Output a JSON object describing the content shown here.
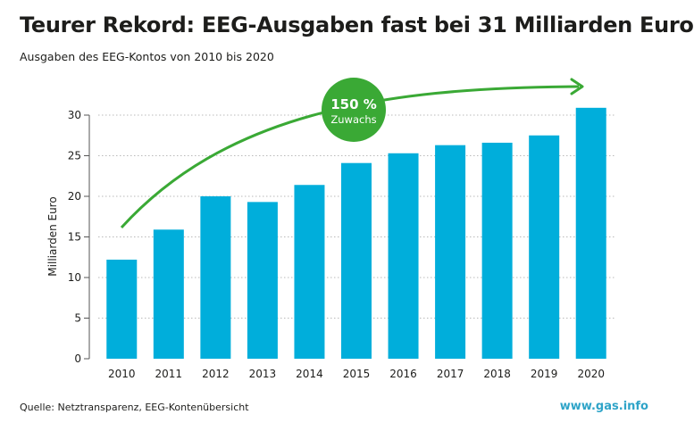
{
  "title": "Teurer Rekord: EEG-Ausgaben fast bei 31 Milliarden Euro",
  "subtitle": "Ausgaben des EEG-Kontos von 2010 bis 2020",
  "source": "Quelle: Netztransparenz, EEG-Kontenübersicht",
  "brand": "www.gas.info",
  "colors": {
    "bar": "#00aedb",
    "accent": "#3aa935",
    "grid": "#b9b9b9",
    "text": "#1d1d1b",
    "brand": "#2fa4c8"
  },
  "badge": {
    "value": "150 %",
    "label": "Zuwachs"
  },
  "chart_data": {
    "type": "bar",
    "categories": [
      "2010",
      "2011",
      "2012",
      "2013",
      "2014",
      "2015",
      "2016",
      "2017",
      "2018",
      "2019",
      "2020"
    ],
    "values": [
      12.2,
      15.9,
      20.0,
      19.3,
      21.4,
      24.1,
      25.3,
      26.3,
      26.6,
      27.5,
      30.9
    ],
    "ylabel": "Milliarden Euro",
    "xlabel": "",
    "ylim": [
      0,
      30
    ],
    "yticks": [
      0,
      5,
      10,
      15,
      20,
      25,
      30
    ],
    "grid": "horizontal dotted",
    "annotation": "arrow from 2010 to 2020 with badge"
  }
}
